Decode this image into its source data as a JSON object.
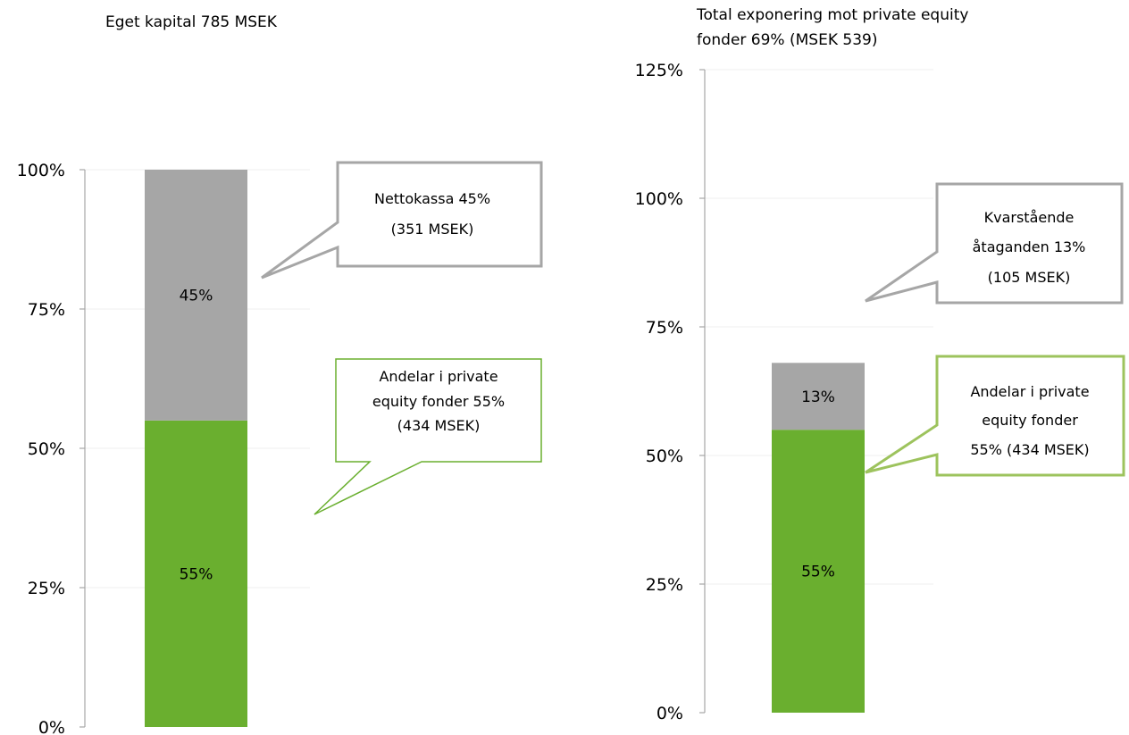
{
  "chart_data": [
    {
      "type": "bar",
      "stacked": true,
      "title": "Eget kapital 785 MSEK",
      "ylim": [
        0,
        100
      ],
      "yticks": [
        "0%",
        "25%",
        "50%",
        "75%",
        "100%"
      ],
      "grid": true,
      "series": [
        {
          "values": [
            55
          ],
          "label": "55%",
          "color": "#6aaf2f"
        },
        {
          "values": [
            45
          ],
          "label": "45%",
          "color": "#a6a6a6"
        }
      ],
      "callouts": [
        {
          "lines": [
            "Nettokassa 45%",
            "(351 MSEK)"
          ],
          "border": "#a6a6a6"
        },
        {
          "lines": [
            "Andelar i private",
            "equity fonder 55%",
            "(434 MSEK)"
          ],
          "border": "#6aaf2f"
        }
      ]
    },
    {
      "type": "bar",
      "stacked": true,
      "title_lines": [
        "Total exponering mot private equity",
        "fonder 69% (MSEK 539)"
      ],
      "ylim": [
        0,
        125
      ],
      "yticks": [
        "0%",
        "25%",
        "50%",
        "75%",
        "100%",
        "125%"
      ],
      "grid": true,
      "series": [
        {
          "values": [
            55
          ],
          "label": "55%",
          "color": "#6aaf2f"
        },
        {
          "values": [
            13
          ],
          "label": "13%",
          "color": "#a6a6a6"
        }
      ],
      "callouts": [
        {
          "lines": [
            "Kvarstående",
            "åtaganden 13%",
            "(105 MSEK)"
          ],
          "border": "#a6a6a6"
        },
        {
          "lines": [
            "Andelar i private",
            "equity fonder",
            "55% (434 MSEK)"
          ],
          "border": "#9dc35d"
        }
      ]
    }
  ]
}
